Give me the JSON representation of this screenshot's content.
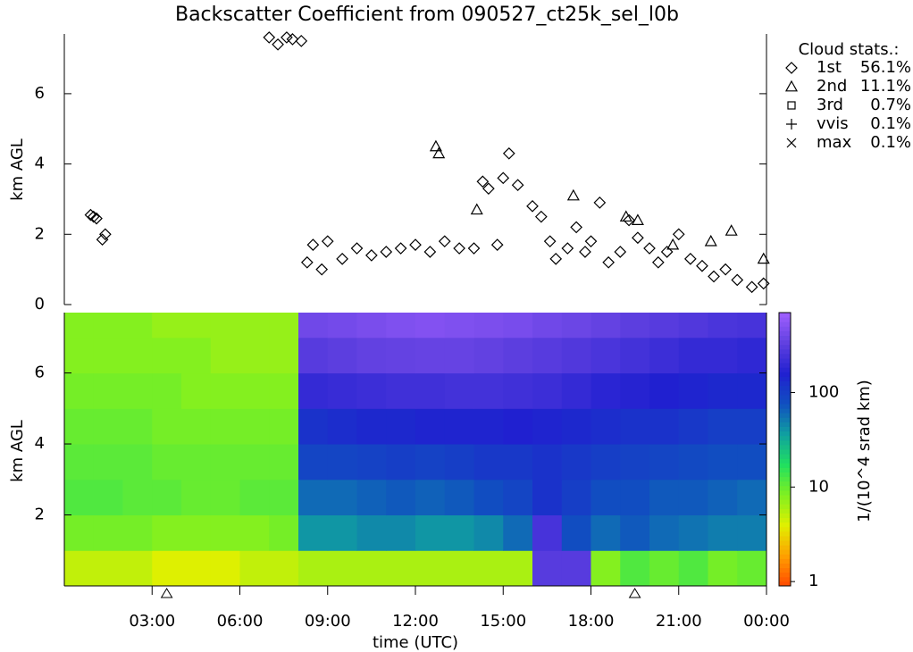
{
  "chart_data": [
    {
      "type": "scatter",
      "title": "Backscatter Coefficient from 090527_ct25k_sel_l0b",
      "ylabel": "km AGL",
      "xlim": [
        0,
        24
      ],
      "ylim": [
        0,
        7.7
      ],
      "yticks": [
        0,
        2,
        4,
        6
      ],
      "legend_title": "Cloud stats.:",
      "legend": "upper right",
      "series": [
        {
          "name": "1st",
          "marker": "diamond",
          "stats": "56.1%",
          "x": [
            0.9,
            1.0,
            1.1,
            1.3,
            1.4,
            7.0,
            7.3,
            7.6,
            7.8,
            8.1,
            8.3,
            8.5,
            8.8,
            9.0,
            9.5,
            10,
            10.5,
            11,
            11.5,
            12,
            12.5,
            13,
            13.5,
            14,
            14.3,
            14.5,
            14.8,
            15,
            15.2,
            15.5,
            16,
            16.3,
            16.6,
            16.8,
            17.2,
            17.5,
            17.8,
            18,
            18.3,
            18.6,
            19,
            19.3,
            19.6,
            20,
            20.3,
            20.6,
            21,
            21.4,
            21.8,
            22.2,
            22.6,
            23,
            23.5,
            23.9
          ],
          "values": [
            2.55,
            2.5,
            2.45,
            1.85,
            2.0,
            7.6,
            7.4,
            7.6,
            7.55,
            7.5,
            1.2,
            1.7,
            1.0,
            1.8,
            1.3,
            1.6,
            1.4,
            1.5,
            1.6,
            1.7,
            1.5,
            1.8,
            1.6,
            1.6,
            3.5,
            3.3,
            1.7,
            3.6,
            4.3,
            3.4,
            2.8,
            2.5,
            1.8,
            1.3,
            1.6,
            2.2,
            1.5,
            1.8,
            2.9,
            1.2,
            1.5,
            2.4,
            1.9,
            1.6,
            1.2,
            1.5,
            2.0,
            1.3,
            1.1,
            0.8,
            1.0,
            0.7,
            0.5,
            0.6
          ]
        },
        {
          "name": "2nd",
          "marker": "triangle",
          "stats": "11.1%",
          "x": [
            12.7,
            12.8,
            14.1,
            17.4,
            19.2,
            19.6,
            20.8,
            22.1,
            22.8,
            23.9
          ],
          "values": [
            4.5,
            4.3,
            2.7,
            3.1,
            2.5,
            2.4,
            1.7,
            1.8,
            2.1,
            1.3
          ]
        },
        {
          "name": "3rd",
          "marker": "square",
          "stats": "0.7%",
          "x": [],
          "values": []
        },
        {
          "name": "vvis",
          "marker": "plus",
          "stats": "0.1%",
          "x": [],
          "values": []
        },
        {
          "name": "max",
          "marker": "cross",
          "stats": "0.1%",
          "x": [],
          "values": []
        }
      ]
    },
    {
      "type": "heatmap",
      "ylabel": "km AGL",
      "xlabel": "time (UTC)",
      "xlim": [
        0,
        24
      ],
      "ylim": [
        0,
        7.7
      ],
      "yticks": [
        2,
        4,
        6
      ],
      "xticks": [
        {
          "value": 3,
          "label": "03:00"
        },
        {
          "value": 6,
          "label": "06:00"
        },
        {
          "value": 9,
          "label": "09:00"
        },
        {
          "value": 12,
          "label": "12:00"
        },
        {
          "value": 15,
          "label": "15:00"
        },
        {
          "value": 18,
          "label": "18:00"
        },
        {
          "value": 21,
          "label": "21:00"
        },
        {
          "value": 24,
          "label": "00:00"
        }
      ],
      "markers_x": [
        3.5,
        19.5
      ],
      "x_bins": [
        0,
        1,
        2,
        3,
        4,
        5,
        6,
        7,
        8,
        9,
        10,
        11,
        12,
        13,
        14,
        15,
        16,
        17,
        18,
        19,
        20,
        21,
        22,
        23,
        24
      ],
      "y_bins": [
        0,
        1,
        2,
        3,
        4,
        5,
        6,
        7,
        7.7
      ],
      "z": [
        [
          5,
          5,
          5,
          4,
          4,
          4,
          5,
          5,
          6,
          6,
          6,
          6,
          6,
          6,
          6,
          6,
          300,
          300,
          8,
          12,
          10,
          12,
          9,
          10
        ],
        [
          9,
          9,
          9,
          8,
          8,
          8,
          8,
          9,
          40,
          40,
          45,
          45,
          40,
          40,
          45,
          60,
          250,
          80,
          60,
          70,
          60,
          55,
          50,
          50
        ],
        [
          12,
          12,
          11,
          11,
          10,
          10,
          11,
          11,
          60,
          60,
          65,
          70,
          65,
          70,
          80,
          90,
          120,
          100,
          80,
          80,
          70,
          70,
          65,
          60
        ],
        [
          11,
          11,
          11,
          10,
          10,
          10,
          10,
          10,
          90,
          90,
          95,
          100,
          95,
          100,
          110,
          110,
          120,
          110,
          100,
          95,
          90,
          85,
          80,
          80
        ],
        [
          10,
          10,
          10,
          9,
          9,
          9,
          9,
          9,
          120,
          130,
          140,
          140,
          150,
          150,
          150,
          160,
          150,
          140,
          130,
          120,
          120,
          110,
          100,
          100
        ],
        [
          9,
          9,
          9,
          9,
          8,
          8,
          8,
          8,
          200,
          210,
          220,
          230,
          230,
          240,
          240,
          230,
          220,
          200,
          180,
          170,
          160,
          150,
          140,
          140
        ],
        [
          8,
          8,
          8,
          8,
          8,
          7,
          7,
          7,
          300,
          320,
          340,
          350,
          360,
          360,
          340,
          320,
          300,
          280,
          260,
          240,
          220,
          200,
          200,
          190
        ],
        [
          8,
          8,
          8,
          7,
          7,
          7,
          7,
          7,
          400,
          420,
          450,
          480,
          500,
          480,
          460,
          440,
          400,
          380,
          350,
          320,
          300,
          280,
          260,
          250
        ]
      ],
      "clim": [
        0.9,
        700
      ],
      "log_color": true,
      "colormap": [
        "#ff4a00",
        "#ffa000",
        "#e0f000",
        "#80f020",
        "#20e060",
        "#10a0a0",
        "#1050c0",
        "#2020d0",
        "#6040e0",
        "#a060ff"
      ],
      "colorbar_label": "1/(10^4 srad km)",
      "cticks": [
        1,
        10,
        100
      ]
    }
  ]
}
